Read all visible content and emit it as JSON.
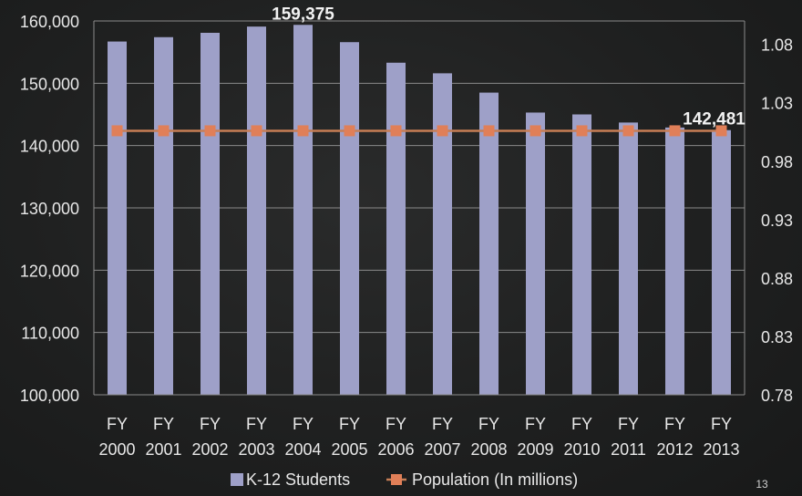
{
  "colors": {
    "bar": "#9ea0c8",
    "line": "#c77e55",
    "marker": "#e07f58",
    "grid": "#8a8a8a",
    "text": "#e8e8e8"
  },
  "page_number": "13",
  "chart_data": {
    "type": "bar",
    "categories": [
      "FY 2000",
      "FY 2001",
      "FY 2002",
      "FY 2003",
      "FY 2004",
      "FY 2005",
      "FY 2006",
      "FY 2007",
      "FY 2008",
      "FY 2009",
      "FY 2010",
      "FY 2011",
      "FY 2012",
      "FY 2013"
    ],
    "category_lines": [
      [
        "FY",
        "2000"
      ],
      [
        "FY",
        "2001"
      ],
      [
        "FY",
        "2002"
      ],
      [
        "FY",
        "2003"
      ],
      [
        "FY",
        "2004"
      ],
      [
        "FY",
        "2005"
      ],
      [
        "FY",
        "2006"
      ],
      [
        "FY",
        "2007"
      ],
      [
        "FY",
        "2008"
      ],
      [
        "FY",
        "2009"
      ],
      [
        "FY",
        "2010"
      ],
      [
        "FY",
        "2011"
      ],
      [
        "FY",
        "2012"
      ],
      [
        "FY",
        "2013"
      ]
    ],
    "series": [
      {
        "name": "K-12 Students",
        "type": "bar",
        "axis": "left",
        "values": [
          156700,
          157400,
          158100,
          159100,
          159375,
          156600,
          153300,
          151600,
          148500,
          145300,
          145000,
          143700,
          142900,
          142481
        ]
      },
      {
        "name": "Population (In millions)",
        "type": "line",
        "axis": "right",
        "values": [
          1.006,
          1.006,
          1.006,
          1.006,
          1.006,
          1.006,
          1.006,
          1.006,
          1.006,
          1.006,
          1.006,
          1.006,
          1.006,
          1.006
        ]
      }
    ],
    "data_labels": [
      {
        "index": 4,
        "text": "159,375"
      },
      {
        "index": 13,
        "text": "142,481"
      }
    ],
    "y_left": {
      "lim": [
        100000,
        160000
      ],
      "ticks": [
        100000,
        110000,
        120000,
        130000,
        140000,
        150000,
        160000
      ],
      "tick_labels": [
        "100,000",
        "110,000",
        "120,000",
        "130,000",
        "140,000",
        "150,000",
        "160,000"
      ]
    },
    "y_right": {
      "lim": [
        0.78,
        1.1
      ],
      "ticks": [
        0.78,
        0.83,
        0.88,
        0.93,
        0.98,
        1.03,
        1.08
      ],
      "tick_labels": [
        "0.78",
        "0.83",
        "0.88",
        "0.93",
        "0.98",
        "1.03",
        "1.08"
      ]
    },
    "grid": true,
    "legend": {
      "position": "bottom",
      "items": [
        "K-12 Students",
        "Population (In millions)"
      ]
    }
  }
}
